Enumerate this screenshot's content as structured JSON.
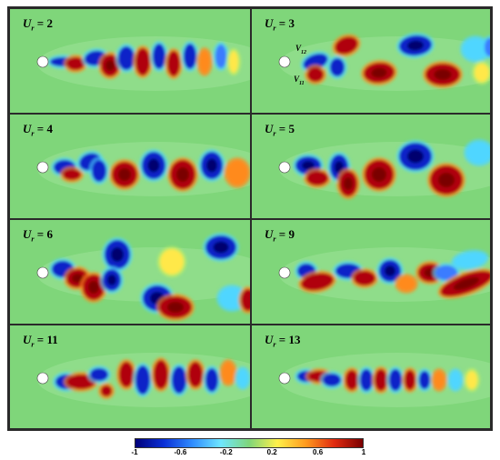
{
  "panels": [
    {
      "symbol": "U",
      "sub": "r",
      "eq": "= ",
      "value": "2"
    },
    {
      "symbol": "U",
      "sub": "r",
      "eq": "= ",
      "value": "3"
    },
    {
      "symbol": "U",
      "sub": "r",
      "eq": "= ",
      "value": "4"
    },
    {
      "symbol": "U",
      "sub": "r",
      "eq": "= ",
      "value": "5"
    },
    {
      "symbol": "U",
      "sub": "r",
      "eq": "= ",
      "value": "6"
    },
    {
      "symbol": "U",
      "sub": "r",
      "eq": "= ",
      "value": "9"
    },
    {
      "symbol": "U",
      "sub": "r",
      "eq": "= ",
      "value": "11"
    },
    {
      "symbol": "U",
      "sub": "r",
      "eq": "= ",
      "value": "13"
    }
  ],
  "vortex_labels": [
    {
      "symbol": "V",
      "sub": "12"
    },
    {
      "symbol": "V",
      "sub": "11"
    }
  ],
  "colorbar": {
    "ticks": [
      "-1",
      "-0.6",
      "-0.2",
      "0.2",
      "0.6",
      "1"
    ],
    "range": [
      -1,
      1
    ],
    "colors": [
      "#00007a",
      "#0a2fd6",
      "#2f8cff",
      "#6fe6ff",
      "#7fd67a",
      "#fff04a",
      "#ff9a1e",
      "#e02a10",
      "#7a0000"
    ]
  }
}
